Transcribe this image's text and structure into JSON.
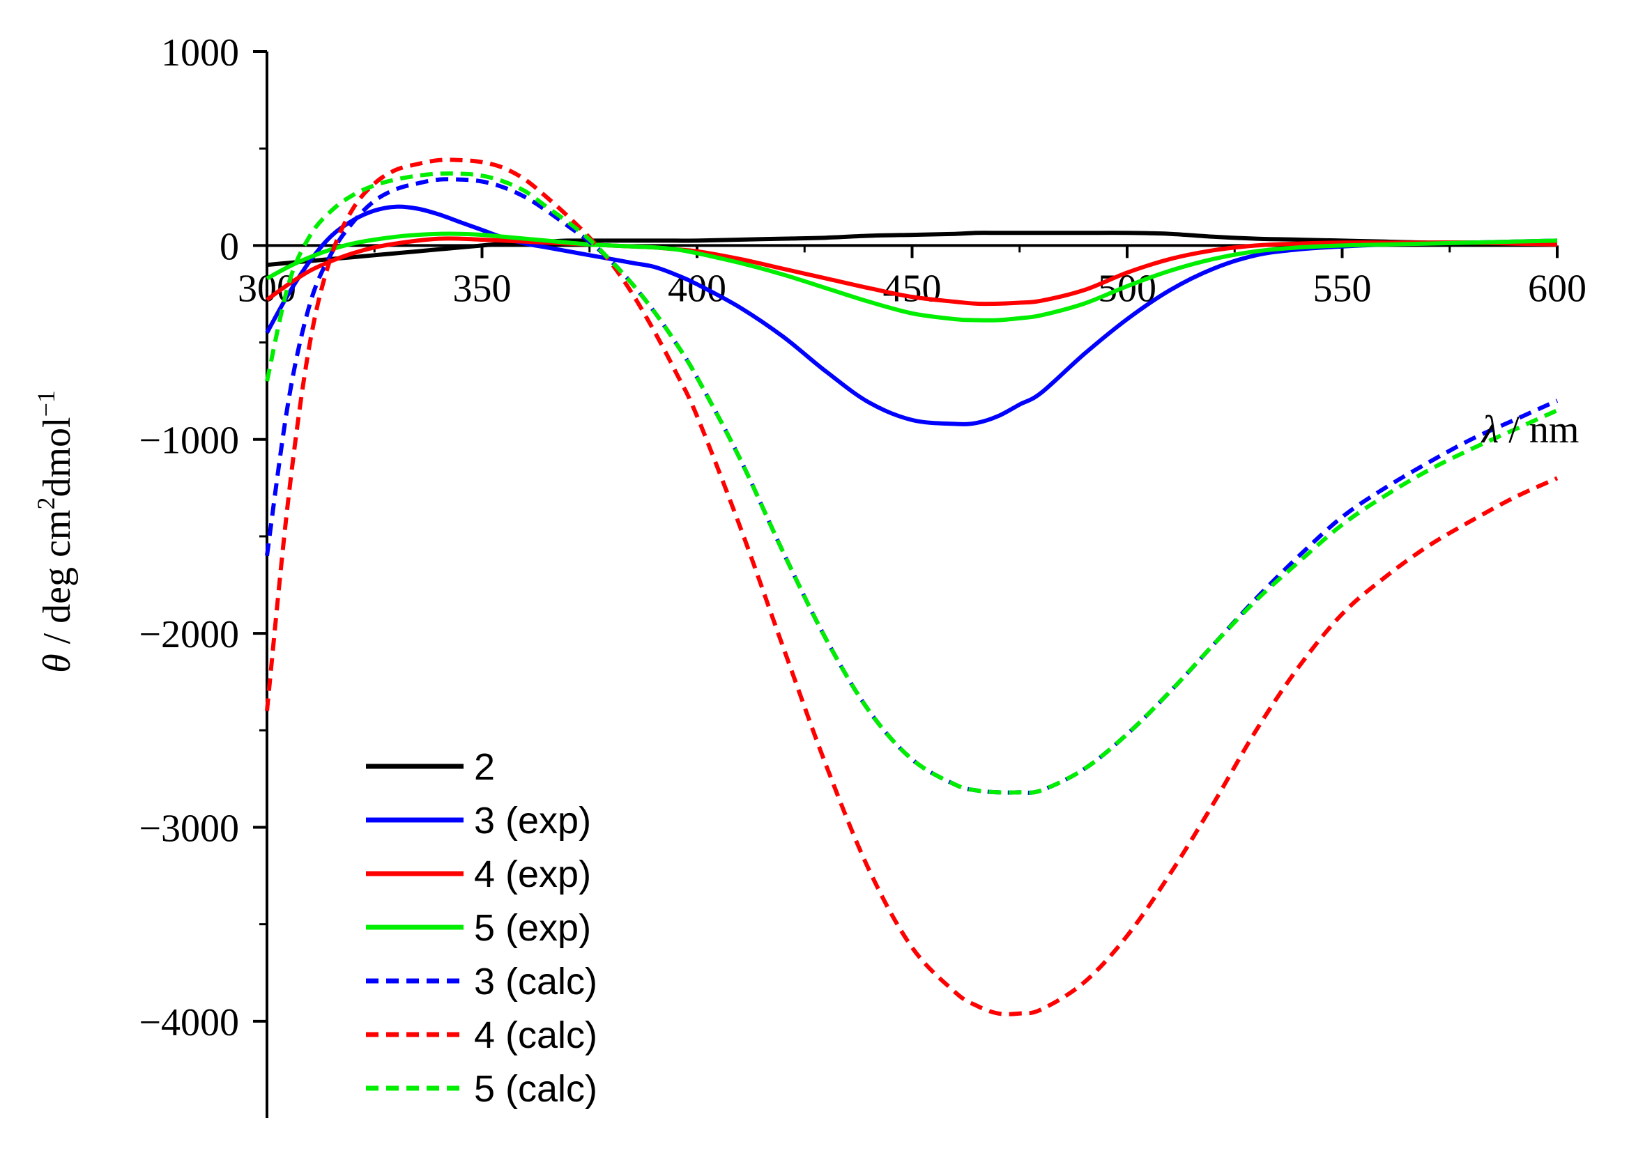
{
  "chart_data": {
    "type": "line",
    "title": "",
    "xlabel": {
      "symbol": "λ",
      "unit": " / nm"
    },
    "ylabel": {
      "symbol": "θ",
      "unit": " / deg cm",
      "sup1": "2",
      "mid": "dmol",
      "sup2": "−1"
    },
    "xlim": [
      300,
      600
    ],
    "ylim": [
      -4500,
      1000
    ],
    "xticks": [
      300,
      350,
      400,
      450,
      500,
      550,
      600
    ],
    "xtick_labels": [
      "300",
      "350",
      "400",
      "450",
      "500",
      "550",
      "600"
    ],
    "yticks": [
      1000,
      0,
      -1000,
      -2000,
      -3000,
      -4000
    ],
    "ytick_labels": [
      "1000",
      "0",
      "−1000",
      "−2000",
      "−3000",
      "−4000"
    ],
    "legend_position": "lower-left",
    "x": [
      300,
      305,
      310,
      315,
      320,
      325,
      330,
      335,
      340,
      345,
      350,
      355,
      360,
      365,
      370,
      375,
      380,
      385,
      390,
      395,
      400,
      410,
      420,
      430,
      440,
      450,
      460,
      465,
      470,
      475,
      480,
      490,
      500,
      510,
      520,
      530,
      540,
      550,
      560,
      570,
      580,
      590,
      600
    ],
    "series": [
      {
        "name": "2",
        "color": "#000000",
        "style": "solid",
        "values": [
          -100,
          -90,
          -80,
          -70,
          -60,
          -50,
          -40,
          -30,
          -20,
          -10,
          0,
          10,
          15,
          20,
          25,
          25,
          25,
          25,
          25,
          25,
          25,
          30,
          35,
          40,
          50,
          55,
          60,
          65,
          65,
          65,
          65,
          65,
          65,
          60,
          45,
          35,
          30,
          25,
          20,
          15,
          15,
          15,
          15
        ]
      },
      {
        "name": "3 (exp)",
        "color": "#0000ff",
        "style": "solid",
        "values": [
          -450,
          -250,
          -80,
          50,
          130,
          180,
          200,
          190,
          160,
          120,
          80,
          40,
          10,
          -10,
          -30,
          -50,
          -70,
          -90,
          -110,
          -150,
          -200,
          -320,
          -470,
          -650,
          -810,
          -900,
          -920,
          -915,
          -880,
          -820,
          -760,
          -560,
          -380,
          -230,
          -120,
          -50,
          -20,
          -5,
          5,
          10,
          15,
          20,
          25
        ]
      },
      {
        "name": "4 (exp)",
        "color": "#ff0000",
        "style": "solid",
        "values": [
          -280,
          -200,
          -130,
          -80,
          -40,
          -10,
          10,
          25,
          35,
          35,
          30,
          25,
          20,
          15,
          10,
          5,
          0,
          -5,
          -10,
          -20,
          -30,
          -70,
          -120,
          -170,
          -220,
          -265,
          -290,
          -300,
          -300,
          -295,
          -285,
          -230,
          -140,
          -70,
          -25,
          0,
          10,
          15,
          15,
          15,
          15,
          10,
          5
        ]
      },
      {
        "name": "5 (exp)",
        "color": "#00ee00",
        "style": "solid",
        "values": [
          -170,
          -110,
          -60,
          -20,
          10,
          30,
          45,
          55,
          60,
          60,
          55,
          45,
          35,
          25,
          15,
          5,
          0,
          -5,
          -10,
          -20,
          -40,
          -90,
          -150,
          -220,
          -290,
          -350,
          -380,
          -385,
          -385,
          -375,
          -360,
          -300,
          -210,
          -130,
          -70,
          -30,
          -10,
          0,
          5,
          10,
          15,
          20,
          25
        ]
      },
      {
        "name": "3 (calc)",
        "color": "#0000ff",
        "style": "dashed",
        "values": [
          -1600,
          -800,
          -300,
          -40,
          120,
          230,
          290,
          320,
          340,
          340,
          330,
          300,
          250,
          180,
          100,
          20,
          -80,
          -200,
          -340,
          -500,
          -680,
          -1100,
          -1580,
          -2030,
          -2400,
          -2650,
          -2780,
          -2810,
          -2820,
          -2820,
          -2810,
          -2700,
          -2520,
          -2300,
          -2060,
          -1820,
          -1600,
          -1400,
          -1250,
          -1120,
          -1000,
          -900,
          -800
        ]
      },
      {
        "name": "4 (calc)",
        "color": "#ff0000",
        "style": "dashed",
        "values": [
          -2400,
          -1300,
          -500,
          -50,
          190,
          320,
          390,
          420,
          440,
          440,
          430,
          400,
          340,
          250,
          150,
          40,
          -90,
          -250,
          -440,
          -650,
          -880,
          -1450,
          -2070,
          -2680,
          -3220,
          -3620,
          -3850,
          -3920,
          -3960,
          -3960,
          -3940,
          -3800,
          -3560,
          -3240,
          -2880,
          -2500,
          -2170,
          -1900,
          -1710,
          -1550,
          -1420,
          -1300,
          -1200
        ]
      },
      {
        "name": "5 (calc)",
        "color": "#00ee00",
        "style": "dashed",
        "values": [
          -700,
          -200,
          50,
          180,
          260,
          310,
          340,
          360,
          370,
          370,
          360,
          330,
          280,
          200,
          120,
          30,
          -80,
          -200,
          -340,
          -500,
          -680,
          -1100,
          -1580,
          -2030,
          -2400,
          -2650,
          -2780,
          -2810,
          -2820,
          -2820,
          -2810,
          -2700,
          -2520,
          -2300,
          -2060,
          -1830,
          -1630,
          -1440,
          -1290,
          -1160,
          -1050,
          -950,
          -850
        ]
      }
    ]
  }
}
